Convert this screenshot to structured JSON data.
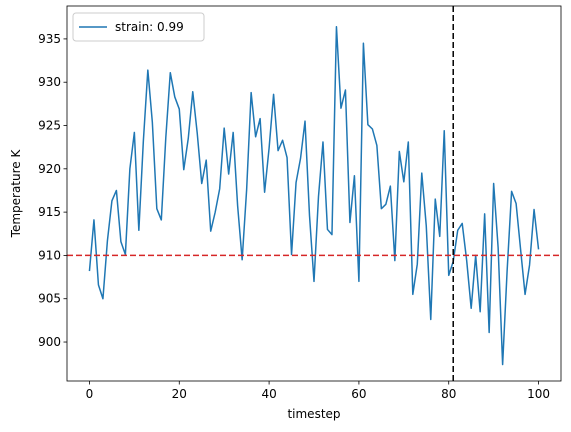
{
  "chart_data": {
    "type": "line",
    "title": "",
    "xlabel": "timestep",
    "ylabel": "Temperature K",
    "xlim": [
      -5,
      105
    ],
    "ylim": [
      895.5,
      938.8
    ],
    "xticks": [
      0,
      20,
      40,
      60,
      80,
      100
    ],
    "yticks": [
      900,
      905,
      910,
      915,
      920,
      925,
      930,
      935
    ],
    "grid": false,
    "legend_position": "top-left",
    "series": [
      {
        "name": "strain: 0.99",
        "color": "#1f77b4",
        "x": [
          0,
          1,
          2,
          3,
          4,
          5,
          6,
          7,
          8,
          9,
          10,
          11,
          12,
          13,
          14,
          15,
          16,
          17,
          18,
          19,
          20,
          21,
          22,
          23,
          24,
          25,
          26,
          27,
          28,
          29,
          30,
          31,
          32,
          33,
          34,
          35,
          36,
          37,
          38,
          39,
          40,
          41,
          42,
          43,
          44,
          45,
          46,
          47,
          48,
          49,
          50,
          51,
          52,
          53,
          54,
          55,
          56,
          57,
          58,
          59,
          60,
          61,
          62,
          63,
          64,
          65,
          66,
          67,
          68,
          69,
          70,
          71,
          72,
          73,
          74,
          75,
          76,
          77,
          78,
          79,
          80,
          81,
          82,
          83,
          84,
          85,
          86,
          87,
          88,
          89,
          90,
          91,
          92,
          93,
          94,
          95,
          96,
          97,
          98,
          99,
          100
        ],
        "values": [
          908.2,
          914.1,
          906.6,
          905.0,
          911.7,
          916.3,
          917.5,
          911.6,
          910.1,
          920.0,
          924.2,
          912.9,
          923.2,
          931.4,
          925.4,
          915.4,
          914.1,
          923.6,
          931.1,
          928.3,
          926.9,
          919.9,
          923.5,
          928.9,
          924.1,
          918.3,
          921.0,
          912.8,
          915.0,
          917.7,
          924.7,
          919.4,
          924.2,
          915.7,
          909.5,
          917.6,
          928.8,
          923.7,
          925.8,
          917.3,
          922.4,
          928.6,
          922.1,
          923.3,
          921.3,
          910.1,
          918.4,
          921.2,
          925.5,
          914.6,
          907.0,
          916.8,
          923.1,
          913.0,
          912.4,
          936.4,
          927.0,
          929.1,
          913.8,
          919.2,
          907.0,
          934.5,
          925.1,
          924.6,
          922.7,
          915.4,
          915.9,
          918.0,
          909.4,
          922.0,
          918.5,
          923.1,
          905.5,
          909.0,
          919.5,
          913.4,
          902.6,
          916.5,
          912.2,
          924.4,
          907.7,
          909.3,
          912.9,
          913.7,
          909.4,
          903.9,
          910.0,
          903.5,
          914.8,
          901.1,
          918.3,
          910.9,
          897.4,
          908.2,
          917.4,
          916.0,
          910.7,
          905.5,
          908.9,
          915.3,
          910.7
        ]
      }
    ],
    "reference_lines": [
      {
        "orientation": "horizontal",
        "value": 910,
        "color": "#d62728",
        "style": "dashed"
      },
      {
        "orientation": "vertical",
        "value": 81,
        "color": "#000000",
        "style": "dashed"
      }
    ]
  }
}
